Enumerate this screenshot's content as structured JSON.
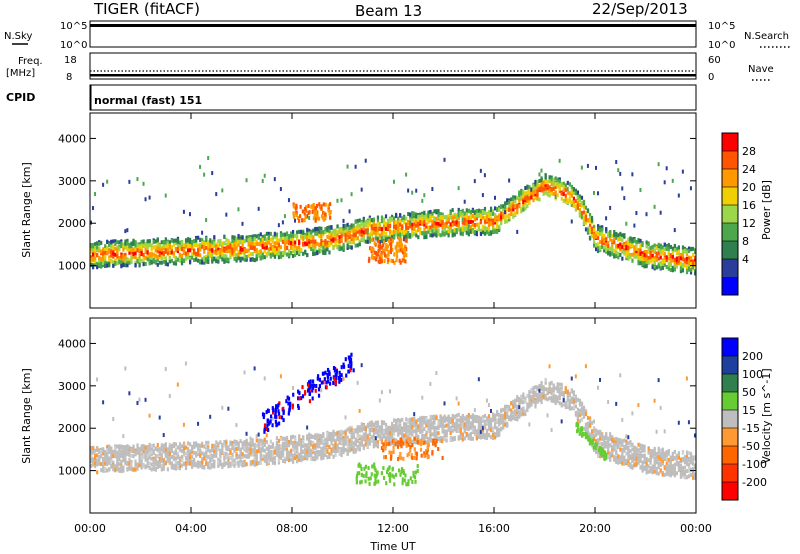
{
  "header": {
    "radar_label": "TIGER (fitACF)",
    "beam_label": "Beam 13",
    "date_label": "22/Sep/2013"
  },
  "colors": {
    "nave_line": "#000000",
    "white_bg": "#ffffff"
  },
  "chart_data": [
    {
      "type": "line",
      "name": "noise-panel",
      "left_label": "N.Sky",
      "right_label": "N.Search",
      "left_ticks": [
        "10^5",
        "10^0"
      ],
      "right_ticks": [
        "10^5",
        "10^0"
      ]
    },
    {
      "type": "line",
      "name": "frequency-panel",
      "left_label_top": "Freq.",
      "left_label_bottom": "[MHz]",
      "right_label": "Nave",
      "left_ticks": [
        "18",
        "8"
      ],
      "right_ticks": [
        "60",
        "0"
      ]
    },
    {
      "type": "table",
      "name": "cpid-panel",
      "label": "CPID",
      "mode_text": "normal (fast) 151"
    },
    {
      "type": "heatmap",
      "name": "power-panel",
      "ylabel": "Slant Range [km]",
      "ylim": [
        0,
        4600
      ],
      "yticks": [
        1000,
        2000,
        3000,
        4000
      ],
      "colorbar_label": "Power [dB]",
      "colorbar_ticks": [
        "28",
        "24",
        "20",
        "16",
        "12",
        "8",
        "4"
      ],
      "colorbar_colors": [
        "#ff0000",
        "#ff5500",
        "#ff9900",
        "#f0d000",
        "#9bd64b",
        "#4da84d",
        "#2f7f4f",
        "#2a3d9a",
        "#0000ff"
      ],
      "bands": [
        {
          "x": [
            0,
            2,
            4,
            6,
            8,
            10,
            11,
            11.5,
            12,
            13,
            14,
            16,
            17,
            18,
            19,
            19.5,
            20,
            22,
            24
          ],
          "center": [
            1300,
            1350,
            1400,
            1450,
            1550,
            1700,
            1900,
            1900,
            1950,
            2000,
            2050,
            2100,
            2500,
            2900,
            2700,
            2300,
            1700,
            1300,
            1150
          ],
          "width": 300
        }
      ]
    },
    {
      "type": "heatmap",
      "name": "velocity-panel",
      "ylabel": "Slant Range [km]",
      "ylim": [
        0,
        4600
      ],
      "yticks": [
        1000,
        2000,
        3000,
        4000
      ],
      "colorbar_label": "Velocity [m s^-1]",
      "colorbar_ticks": [
        "200",
        "100",
        "50",
        "15",
        "-15",
        "-50",
        "-100",
        "-200"
      ],
      "colorbar_colors": [
        "#0000ff",
        "#1d3f9e",
        "#2f7f4f",
        "#66cc33",
        "#bebebe",
        "#ff9933",
        "#ff6600",
        "#ff3300",
        "#ff0000"
      ],
      "xlabel": "Time UT",
      "xticks": [
        "00:00",
        "04:00",
        "08:00",
        "12:00",
        "16:00",
        "20:00",
        "00:00"
      ],
      "xlim_hours": [
        0,
        24
      ]
    }
  ]
}
